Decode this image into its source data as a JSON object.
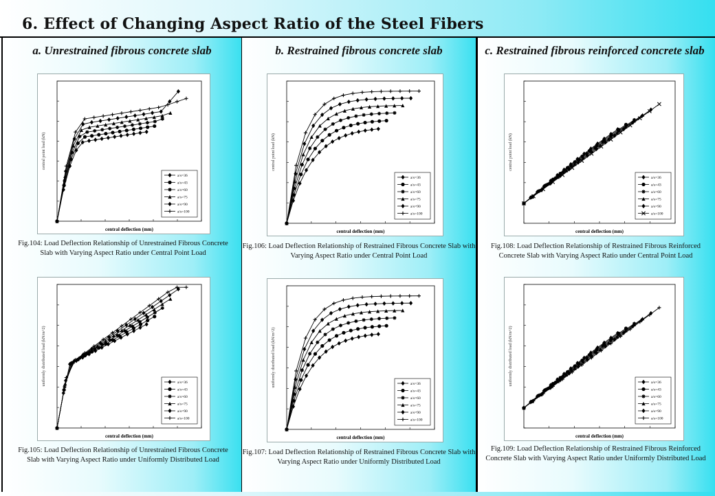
{
  "title": "6. Effect of Changing Aspect Ratio of the Steel Fibers",
  "columns": [
    {
      "heading": "a. Unrestrained fibrous concrete slab"
    },
    {
      "heading": "b. Restrained fibrous concrete slab"
    },
    {
      "heading": "c. Restrained fibrous reinforced concrete slab"
    }
  ],
  "legend_labels": [
    "a/s=36",
    "a/s=43",
    "a/s=60",
    "a/s=75",
    "a/s=90",
    "a/s=100"
  ],
  "figures": [
    {
      "caption": "Fig.104: Load Deflection Relationship of Unrestrained Fibrous Concrete Slab with Varying Aspect Ratio under Central Point Load",
      "xlabel": "central deflection (mm)",
      "ylabel": "central point load (kN)"
    },
    {
      "caption": "Fig.105: Load Deflection Relationship of Unrestrained Fibrous Concrete Slab with Varying Aspect Ratio under Uniformly Distributed Load",
      "xlabel": "central deflection (mm)",
      "ylabel": "uniformly distributed load (kN/m^2)"
    },
    {
      "caption": "Fig.106: Load Deflection Relationship of Restrained Fibrous Concrete Slab with Varying Aspect Ratio under Central Point Load",
      "xlabel": "central deflection (mm)",
      "ylabel": "central point load (kN)"
    },
    {
      "caption": "Fig.107: Load Deflection Relationship of Restrained Fibrous Concrete Slab with Varying Aspect Ratio under Uniformly Distributed Load",
      "xlabel": "central deflection (mm)",
      "ylabel": "uniformly distributed load (kN/m^2)"
    },
    {
      "caption": "Fig.108: Load Deflection Relationship of Restrained Fibrous Reinforced Concrete Slab with Varying Aspect Ratio under Central Point Load",
      "xlabel": "central deflection (mm)",
      "ylabel": "central point load (kN)"
    },
    {
      "caption": "Fig.109: Load Deflection Relationship of Restrained Fibrous Reinforced Concrete Slab with Varying Aspect Ratio under Uniformly Distributed Load",
      "xlabel": "central deflection (mm)",
      "ylabel": "uniformly distributed load (kN/m^2)"
    }
  ],
  "chart_data": [
    {
      "type": "line",
      "curve": "fiber-early",
      "series": [
        {
          "name": "a/s=36",
          "marker": "diamond"
        },
        {
          "name": "a/s=43",
          "marker": "circle"
        },
        {
          "name": "a/s=60",
          "marker": "star"
        },
        {
          "name": "a/s=75",
          "marker": "triangle"
        },
        {
          "name": "a/s=90",
          "marker": "diamond"
        },
        {
          "name": "a/s=100",
          "marker": "plus"
        }
      ]
    },
    {
      "type": "line",
      "curve": "fiber-gradual",
      "series": [
        {
          "name": "a/s=36",
          "marker": "diamond"
        },
        {
          "name": "a/s=43",
          "marker": "circle"
        },
        {
          "name": "a/s=60",
          "marker": "star"
        },
        {
          "name": "a/s=75",
          "marker": "triangle"
        },
        {
          "name": "a/s=90",
          "marker": "diamond"
        },
        {
          "name": "a/s=100",
          "marker": "plus"
        }
      ]
    },
    {
      "type": "line",
      "curve": "fiber-restrained",
      "series": [
        {
          "name": "a/s=36",
          "marker": "diamond"
        },
        {
          "name": "a/s=43",
          "marker": "circle"
        },
        {
          "name": "a/s=60",
          "marker": "star"
        },
        {
          "name": "a/s=75",
          "marker": "triangle"
        },
        {
          "name": "a/s=90",
          "marker": "diamond"
        },
        {
          "name": "a/s=100",
          "marker": "plus"
        }
      ]
    },
    {
      "type": "line",
      "curve": "fiber-restrained",
      "series": [
        {
          "name": "a/s=36",
          "marker": "diamond"
        },
        {
          "name": "a/s=43",
          "marker": "circle"
        },
        {
          "name": "a/s=60",
          "marker": "star"
        },
        {
          "name": "a/s=75",
          "marker": "triangle"
        },
        {
          "name": "a/s=90",
          "marker": "diamond"
        },
        {
          "name": "a/s=100",
          "marker": "plus"
        }
      ]
    },
    {
      "type": "line",
      "curve": "reinforced",
      "series": [
        {
          "name": "a/s=36",
          "marker": "diamond"
        },
        {
          "name": "a/s=43",
          "marker": "circle"
        },
        {
          "name": "a/s=60",
          "marker": "star"
        },
        {
          "name": "a/s=75",
          "marker": "triangle"
        },
        {
          "name": "a/s=90",
          "marker": "diamond"
        },
        {
          "name": "a/s=100",
          "marker": "cross"
        }
      ]
    },
    {
      "type": "line",
      "curve": "reinforced",
      "series": [
        {
          "name": "a/s=36",
          "marker": "diamond"
        },
        {
          "name": "a/s=43",
          "marker": "circle"
        },
        {
          "name": "a/s=60",
          "marker": "star"
        },
        {
          "name": "a/s=75",
          "marker": "triangle"
        },
        {
          "name": "a/s=90",
          "marker": "diamond"
        },
        {
          "name": "a/s=100",
          "marker": "plus"
        }
      ]
    }
  ]
}
